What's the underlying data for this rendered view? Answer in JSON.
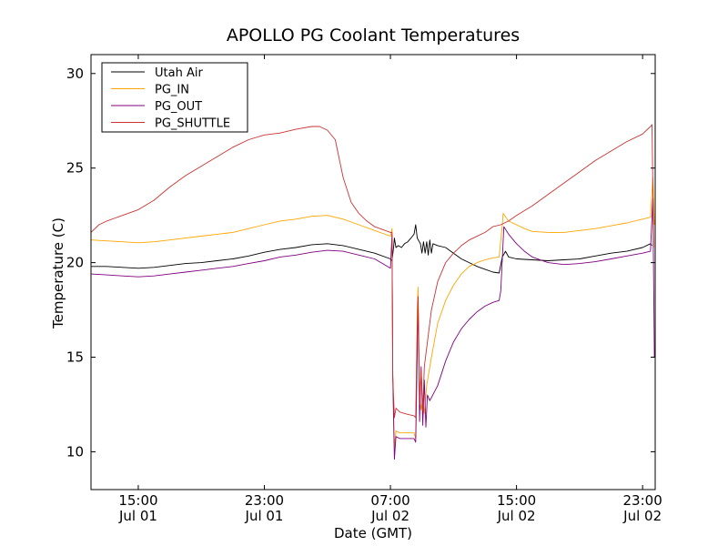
{
  "chart_data": {
    "type": "line",
    "title": "APOLLO PG Coolant Temperatures",
    "xlabel": "Date (GMT)",
    "ylabel": "Temperature (C)",
    "x_unit": "hours since Jul 01 00:00 GMT",
    "xlim": [
      12.0,
      47.8
    ],
    "ylim": [
      8,
      31
    ],
    "yticks": [
      10,
      15,
      20,
      25,
      30
    ],
    "xticks": [
      {
        "x": 15,
        "line1": "15:00",
        "line2": "Jul 01"
      },
      {
        "x": 23,
        "line1": "23:00",
        "line2": "Jul 01"
      },
      {
        "x": 31,
        "line1": "07:00",
        "line2": "Jul 02"
      },
      {
        "x": 39,
        "line1": "15:00",
        "line2": "Jul 02"
      },
      {
        "x": 47,
        "line1": "23:00",
        "line2": "Jul 02"
      }
    ],
    "legend_position": "top-left",
    "series": [
      {
        "name": "Utah Air",
        "color": "#000000",
        "points": [
          [
            12.0,
            19.8
          ],
          [
            13.0,
            19.8
          ],
          [
            14.0,
            19.75
          ],
          [
            15.0,
            19.7
          ],
          [
            16.0,
            19.75
          ],
          [
            17.0,
            19.85
          ],
          [
            18.0,
            19.95
          ],
          [
            19.0,
            20.0
          ],
          [
            20.0,
            20.1
          ],
          [
            21.0,
            20.2
          ],
          [
            22.0,
            20.35
          ],
          [
            23.0,
            20.55
          ],
          [
            24.0,
            20.7
          ],
          [
            25.0,
            20.8
          ],
          [
            26.0,
            20.95
          ],
          [
            27.0,
            21.0
          ],
          [
            28.0,
            20.9
          ],
          [
            29.0,
            20.7
          ],
          [
            30.0,
            20.5
          ],
          [
            31.0,
            20.2
          ],
          [
            31.1,
            20.1
          ],
          [
            31.2,
            20.8
          ],
          [
            31.25,
            21.3
          ],
          [
            31.35,
            20.8
          ],
          [
            31.5,
            20.9
          ],
          [
            31.7,
            20.8
          ],
          [
            31.9,
            21.0
          ],
          [
            32.1,
            21.1
          ],
          [
            32.3,
            21.3
          ],
          [
            32.5,
            21.5
          ],
          [
            32.6,
            22.0
          ],
          [
            32.7,
            21.3
          ],
          [
            32.9,
            21.0
          ],
          [
            33.0,
            20.5
          ],
          [
            33.1,
            21.1
          ],
          [
            33.2,
            20.5
          ],
          [
            33.3,
            21.1
          ],
          [
            33.4,
            20.4
          ],
          [
            33.5,
            21.2
          ],
          [
            33.6,
            20.5
          ],
          [
            33.7,
            21.0
          ],
          [
            34.0,
            20.9
          ],
          [
            34.5,
            20.8
          ],
          [
            35.0,
            20.5
          ],
          [
            35.5,
            20.2
          ],
          [
            36.0,
            20.0
          ],
          [
            36.5,
            19.8
          ],
          [
            37.0,
            19.65
          ],
          [
            37.5,
            19.5
          ],
          [
            37.9,
            19.45
          ],
          [
            38.1,
            20.3
          ],
          [
            38.3,
            20.6
          ],
          [
            38.5,
            20.3
          ],
          [
            39.0,
            20.2
          ],
          [
            40.0,
            20.15
          ],
          [
            41.0,
            20.1
          ],
          [
            42.0,
            20.15
          ],
          [
            43.0,
            20.2
          ],
          [
            44.0,
            20.35
          ],
          [
            45.0,
            20.5
          ],
          [
            46.0,
            20.6
          ],
          [
            47.0,
            20.8
          ],
          [
            47.5,
            21.0
          ],
          [
            47.6,
            20.9
          ]
        ]
      },
      {
        "name": "PG_IN",
        "color": "#ffa500",
        "points": [
          [
            12.0,
            21.2
          ],
          [
            13.0,
            21.15
          ],
          [
            14.0,
            21.1
          ],
          [
            15.0,
            21.05
          ],
          [
            16.0,
            21.1
          ],
          [
            17.0,
            21.2
          ],
          [
            18.0,
            21.3
          ],
          [
            19.0,
            21.4
          ],
          [
            20.0,
            21.5
          ],
          [
            21.0,
            21.6
          ],
          [
            22.0,
            21.8
          ],
          [
            23.0,
            22.0
          ],
          [
            24.0,
            22.2
          ],
          [
            25.0,
            22.3
          ],
          [
            26.0,
            22.45
          ],
          [
            27.0,
            22.5
          ],
          [
            28.0,
            22.3
          ],
          [
            29.0,
            22.0
          ],
          [
            30.0,
            21.7
          ],
          [
            31.0,
            21.4
          ],
          [
            31.1,
            21.8
          ],
          [
            31.15,
            14.0
          ],
          [
            31.25,
            10.2
          ],
          [
            31.35,
            11.1
          ],
          [
            31.6,
            11.0
          ],
          [
            32.0,
            11.0
          ],
          [
            32.5,
            11.0
          ],
          [
            32.6,
            10.7
          ],
          [
            32.7,
            17.5
          ],
          [
            32.75,
            18.7
          ],
          [
            32.85,
            13.0
          ],
          [
            32.95,
            12.2
          ],
          [
            33.05,
            12.8
          ],
          [
            33.15,
            12.0
          ],
          [
            33.3,
            13.5
          ],
          [
            33.6,
            15.0
          ],
          [
            34.0,
            16.8
          ],
          [
            34.5,
            18.0
          ],
          [
            35.0,
            18.8
          ],
          [
            35.5,
            19.4
          ],
          [
            36.0,
            19.8
          ],
          [
            36.5,
            20.0
          ],
          [
            37.0,
            20.15
          ],
          [
            37.5,
            20.25
          ],
          [
            37.9,
            20.3
          ],
          [
            38.1,
            22.0
          ],
          [
            38.15,
            22.6
          ],
          [
            38.5,
            22.2
          ],
          [
            39.0,
            22.0
          ],
          [
            39.5,
            21.8
          ],
          [
            40.0,
            21.65
          ],
          [
            41.0,
            21.6
          ],
          [
            42.0,
            21.6
          ],
          [
            43.0,
            21.7
          ],
          [
            44.0,
            21.8
          ],
          [
            45.0,
            21.95
          ],
          [
            46.0,
            22.1
          ],
          [
            47.0,
            22.3
          ],
          [
            47.5,
            22.4
          ],
          [
            47.65,
            24.5
          ],
          [
            47.75,
            22.0
          ]
        ]
      },
      {
        "name": "PG_OUT",
        "color": "#800080",
        "points": [
          [
            12.0,
            19.4
          ],
          [
            13.0,
            19.35
          ],
          [
            14.0,
            19.3
          ],
          [
            15.0,
            19.25
          ],
          [
            16.0,
            19.3
          ],
          [
            17.0,
            19.4
          ],
          [
            18.0,
            19.5
          ],
          [
            19.0,
            19.6
          ],
          [
            20.0,
            19.7
          ],
          [
            21.0,
            19.8
          ],
          [
            22.0,
            19.95
          ],
          [
            23.0,
            20.1
          ],
          [
            24.0,
            20.3
          ],
          [
            25.0,
            20.4
          ],
          [
            26.0,
            20.55
          ],
          [
            27.0,
            20.65
          ],
          [
            28.0,
            20.6
          ],
          [
            29.0,
            20.4
          ],
          [
            30.0,
            20.2
          ],
          [
            31.0,
            19.7
          ],
          [
            31.1,
            21.5
          ],
          [
            31.15,
            14.0
          ],
          [
            31.25,
            9.6
          ],
          [
            31.35,
            10.8
          ],
          [
            31.6,
            10.7
          ],
          [
            32.0,
            10.7
          ],
          [
            32.5,
            10.7
          ],
          [
            32.6,
            10.5
          ],
          [
            32.7,
            15.0
          ],
          [
            32.75,
            18.2
          ],
          [
            32.85,
            11.6
          ],
          [
            32.95,
            14.5
          ],
          [
            33.05,
            11.4
          ],
          [
            33.15,
            13.8
          ],
          [
            33.25,
            11.3
          ],
          [
            33.35,
            13.0
          ],
          [
            33.5,
            12.7
          ],
          [
            34.0,
            13.5
          ],
          [
            34.5,
            14.8
          ],
          [
            35.0,
            15.8
          ],
          [
            35.5,
            16.5
          ],
          [
            36.0,
            17.0
          ],
          [
            36.5,
            17.4
          ],
          [
            37.0,
            17.7
          ],
          [
            37.5,
            17.9
          ],
          [
            37.9,
            18.0
          ],
          [
            38.0,
            18.5
          ],
          [
            38.2,
            21.9
          ],
          [
            38.5,
            21.5
          ],
          [
            39.0,
            21.0
          ],
          [
            39.5,
            20.6
          ],
          [
            40.0,
            20.3
          ],
          [
            41.0,
            20.0
          ],
          [
            42.0,
            19.9
          ],
          [
            43.0,
            19.95
          ],
          [
            44.0,
            20.05
          ],
          [
            45.0,
            20.2
          ],
          [
            46.0,
            20.35
          ],
          [
            47.0,
            20.5
          ],
          [
            47.5,
            20.6
          ],
          [
            47.65,
            23.4
          ],
          [
            47.75,
            15.0
          ]
        ]
      },
      {
        "name": "PG_SHUTTLE",
        "color": "#cc3333",
        "points": [
          [
            12.0,
            21.6
          ],
          [
            12.5,
            22.0
          ],
          [
            13.0,
            22.2
          ],
          [
            14.0,
            22.5
          ],
          [
            15.0,
            22.8
          ],
          [
            16.0,
            23.3
          ],
          [
            17.0,
            24.0
          ],
          [
            18.0,
            24.6
          ],
          [
            19.0,
            25.1
          ],
          [
            20.0,
            25.6
          ],
          [
            21.0,
            26.1
          ],
          [
            22.0,
            26.5
          ],
          [
            23.0,
            26.75
          ],
          [
            24.0,
            26.85
          ],
          [
            25.0,
            27.05
          ],
          [
            26.0,
            27.2
          ],
          [
            26.5,
            27.2
          ],
          [
            27.0,
            27.0
          ],
          [
            27.5,
            26.5
          ],
          [
            28.0,
            24.5
          ],
          [
            28.5,
            23.2
          ],
          [
            29.0,
            22.6
          ],
          [
            29.5,
            22.2
          ],
          [
            30.0,
            21.9
          ],
          [
            31.0,
            21.6
          ],
          [
            31.1,
            21.6
          ],
          [
            31.15,
            14.0
          ],
          [
            31.25,
            11.8
          ],
          [
            31.35,
            12.3
          ],
          [
            31.6,
            12.1
          ],
          [
            32.0,
            12.0
          ],
          [
            32.5,
            11.9
          ],
          [
            32.6,
            11.8
          ],
          [
            32.7,
            16.5
          ],
          [
            32.75,
            18.2
          ],
          [
            32.85,
            12.5
          ],
          [
            32.95,
            14.3
          ],
          [
            33.05,
            12.2
          ],
          [
            33.15,
            14.5
          ],
          [
            33.3,
            15.5
          ],
          [
            33.6,
            17.5
          ],
          [
            34.0,
            19.0
          ],
          [
            34.5,
            20.0
          ],
          [
            35.0,
            20.5
          ],
          [
            35.5,
            20.9
          ],
          [
            36.0,
            21.2
          ],
          [
            37.0,
            21.6
          ],
          [
            37.5,
            21.9
          ],
          [
            38.0,
            22.0
          ],
          [
            38.5,
            22.2
          ],
          [
            39.0,
            22.5
          ],
          [
            40.0,
            23.0
          ],
          [
            41.0,
            23.6
          ],
          [
            42.0,
            24.2
          ],
          [
            43.0,
            24.8
          ],
          [
            44.0,
            25.4
          ],
          [
            45.0,
            25.9
          ],
          [
            46.0,
            26.4
          ],
          [
            47.0,
            26.8
          ],
          [
            47.5,
            27.2
          ],
          [
            47.6,
            27.3
          ],
          [
            47.7,
            20.8
          ]
        ]
      }
    ]
  }
}
